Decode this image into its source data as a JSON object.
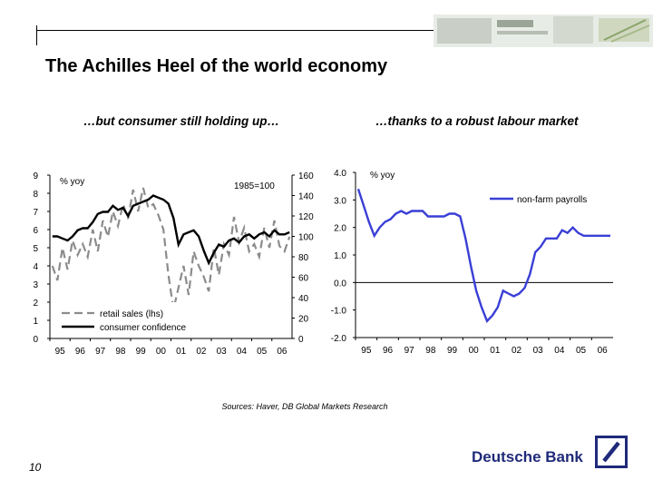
{
  "slide": {
    "title": "The Achilles Heel of the world economy",
    "left_subtitle": "…but consumer still holding up…",
    "right_subtitle": "…thanks to a robust labour market",
    "source": "Sources: Haver, DB Global Markets Research",
    "page_number": "10",
    "brand": "Deutsche Bank",
    "colors": {
      "brand_blue": "#1f2a7a",
      "series_blue": "#3a3fd6",
      "series_gray": "#8c8c8c",
      "series_black": "#000000"
    }
  },
  "chart_data": [
    {
      "type": "line",
      "title": "",
      "unit_left": "% yoy",
      "unit_right": "1985=100",
      "x_ticks": [
        "95",
        "96",
        "97",
        "98",
        "99",
        "00",
        "01",
        "02",
        "03",
        "04",
        "05",
        "06"
      ],
      "y_left_ticks": [
        "0",
        "1",
        "2",
        "3",
        "4",
        "5",
        "6",
        "7",
        "8",
        "9"
      ],
      "y_right_ticks": [
        "0",
        "20",
        "40",
        "60",
        "80",
        "100",
        "120",
        "140",
        "160"
      ],
      "ylim_left": [
        0,
        9
      ],
      "ylim_right": [
        0,
        160
      ],
      "xlim": [
        1995,
        2007
      ],
      "legend_placement": "bottom-left",
      "series": [
        {
          "name": "retail sales (lhs)",
          "axis": "left",
          "style": "dashed",
          "color": "#8c8c8c",
          "x": [
            1995,
            1995.25,
            1995.5,
            1995.75,
            1996,
            1996.25,
            1996.5,
            1996.75,
            1997,
            1997.25,
            1997.5,
            1997.75,
            1998,
            1998.25,
            1998.5,
            1998.75,
            1999,
            1999.25,
            1999.5,
            1999.75,
            2000,
            2000.25,
            2000.5,
            2000.75,
            2001,
            2001.25,
            2001.5,
            2001.75,
            2002,
            2002.25,
            2002.5,
            2002.75,
            2003,
            2003.25,
            2003.5,
            2003.75,
            2004,
            2004.25,
            2004.5,
            2004.75,
            2005,
            2005.25,
            2005.5,
            2005.75,
            2006,
            2006.25,
            2006.5,
            2006.75
          ],
          "y": [
            4.0,
            3.2,
            5.0,
            3.8,
            5.4,
            4.6,
            5.2,
            4.5,
            6.0,
            4.8,
            6.5,
            5.6,
            7.0,
            6.2,
            7.4,
            6.6,
            8.2,
            7.0,
            8.3,
            7.2,
            7.4,
            6.8,
            6.0,
            3.5,
            1.6,
            2.8,
            4.0,
            2.4,
            4.8,
            4.0,
            3.4,
            2.6,
            5.0,
            3.5,
            5.2,
            4.6,
            6.7,
            5.3,
            6.1,
            4.8,
            5.2,
            4.5,
            6.1,
            5.0,
            6.5,
            5.1,
            4.8,
            5.6
          ]
        },
        {
          "name": "consumer confidence",
          "axis": "right",
          "style": "solid",
          "color": "#000000",
          "x": [
            1995,
            1995.25,
            1995.5,
            1995.75,
            1996,
            1996.25,
            1996.5,
            1996.75,
            1997,
            1997.25,
            1997.5,
            1997.75,
            1998,
            1998.25,
            1998.5,
            1998.75,
            1999,
            1999.25,
            1999.5,
            1999.75,
            2000,
            2000.25,
            2000.5,
            2000.75,
            2001,
            2001.25,
            2001.5,
            2001.75,
            2002,
            2002.25,
            2002.5,
            2002.75,
            2003,
            2003.25,
            2003.5,
            2003.75,
            2004,
            2004.25,
            2004.5,
            2004.75,
            2005,
            2005.25,
            2005.5,
            2005.75,
            2006,
            2006.25,
            2006.5,
            2006.75
          ],
          "y": [
            100,
            100,
            98,
            96,
            100,
            106,
            108,
            108,
            114,
            122,
            124,
            124,
            130,
            126,
            128,
            120,
            130,
            132,
            134,
            136,
            140,
            138,
            136,
            132,
            118,
            92,
            102,
            104,
            106,
            100,
            86,
            74,
            84,
            92,
            90,
            96,
            98,
            94,
            100,
            102,
            98,
            102,
            104,
            100,
            106,
            102,
            102,
            104
          ]
        }
      ]
    },
    {
      "type": "line",
      "title": "",
      "unit_left": "% yoy",
      "x_ticks": [
        "95",
        "96",
        "97",
        "98",
        "99",
        "00",
        "01",
        "02",
        "03",
        "04",
        "05",
        "06"
      ],
      "y_ticks": [
        "4.0",
        "3.0",
        "2.0",
        "1.0",
        "0.0",
        "-1.0",
        "-2.0"
      ],
      "ylim": [
        -2.0,
        4.0
      ],
      "xlim": [
        1995,
        2007
      ],
      "legend_placement": "top-right",
      "series": [
        {
          "name": "non-farm payrolls",
          "style": "solid",
          "color": "#3a3fd6",
          "x": [
            1995,
            1995.25,
            1995.5,
            1995.75,
            1996,
            1996.25,
            1996.5,
            1996.75,
            1997,
            1997.25,
            1997.5,
            1997.75,
            1998,
            1998.25,
            1998.5,
            1998.75,
            1999,
            1999.25,
            1999.5,
            1999.75,
            2000,
            2000.25,
            2000.5,
            2000.75,
            2001,
            2001.25,
            2001.5,
            2001.75,
            2002,
            2002.25,
            2002.5,
            2002.75,
            2003,
            2003.25,
            2003.5,
            2003.75,
            2004,
            2004.25,
            2004.5,
            2004.75,
            2005,
            2005.25,
            2005.5,
            2005.75,
            2006,
            2006.25,
            2006.5,
            2006.75
          ],
          "y": [
            3.4,
            2.8,
            2.2,
            1.7,
            2.0,
            2.2,
            2.3,
            2.5,
            2.6,
            2.5,
            2.6,
            2.6,
            2.6,
            2.4,
            2.4,
            2.4,
            2.4,
            2.5,
            2.5,
            2.4,
            1.6,
            0.6,
            -0.3,
            -0.9,
            -1.4,
            -1.2,
            -0.9,
            -0.3,
            -0.4,
            -0.5,
            -0.4,
            -0.2,
            0.3,
            1.1,
            1.3,
            1.6,
            1.6,
            1.6,
            1.9,
            1.8,
            2.0,
            1.8,
            1.7,
            1.7,
            1.7,
            1.7,
            1.7,
            1.7
          ]
        }
      ]
    }
  ]
}
